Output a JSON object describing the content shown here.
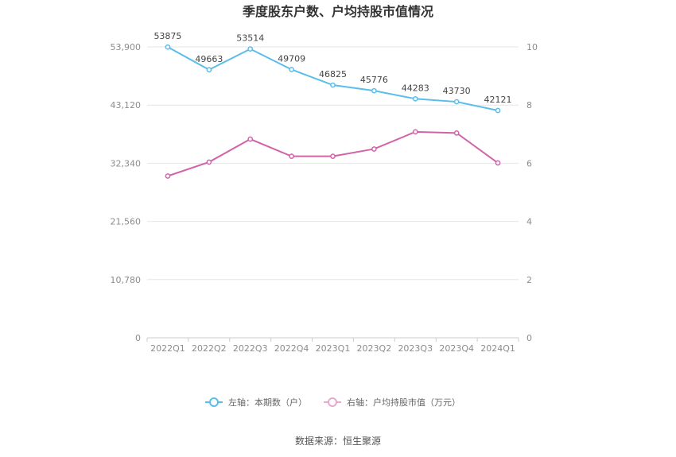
{
  "chart_data": {
    "type": "line",
    "title": "季度股东户数、户均持股市值情况",
    "categories": [
      "2022Q1",
      "2022Q2",
      "2022Q3",
      "2022Q4",
      "2023Q1",
      "2023Q2",
      "2023Q3",
      "2023Q4",
      "2024Q1"
    ],
    "series": [
      {
        "name": "左轴：本期数（户）",
        "axis": "left",
        "color": "#5bbdec",
        "values": [
          53875,
          49663,
          53514,
          49709,
          46825,
          45776,
          44283,
          43730,
          42121
        ]
      },
      {
        "name": "右轴：户均持股市值（万元）",
        "axis": "right",
        "color": "#d163a8",
        "values": [
          5.56,
          6.04,
          6.83,
          6.24,
          6.24,
          6.49,
          7.08,
          7.04,
          6.01
        ]
      }
    ],
    "left_axis": {
      "min": 0,
      "max": 53900,
      "ticks": [
        0,
        10780,
        21560,
        32340,
        43120,
        53900
      ],
      "tick_labels": [
        "0",
        "10,780",
        "21,560",
        "32,340",
        "43,120",
        "53,900"
      ]
    },
    "right_axis": {
      "min": 0,
      "max": 10,
      "ticks": [
        0,
        2,
        4,
        6,
        8,
        10
      ],
      "tick_labels": [
        "0",
        "2",
        "4",
        "6",
        "8",
        "10"
      ]
    },
    "grid": true,
    "legend_position": "bottom",
    "source": "数据来源：恒生聚源"
  }
}
